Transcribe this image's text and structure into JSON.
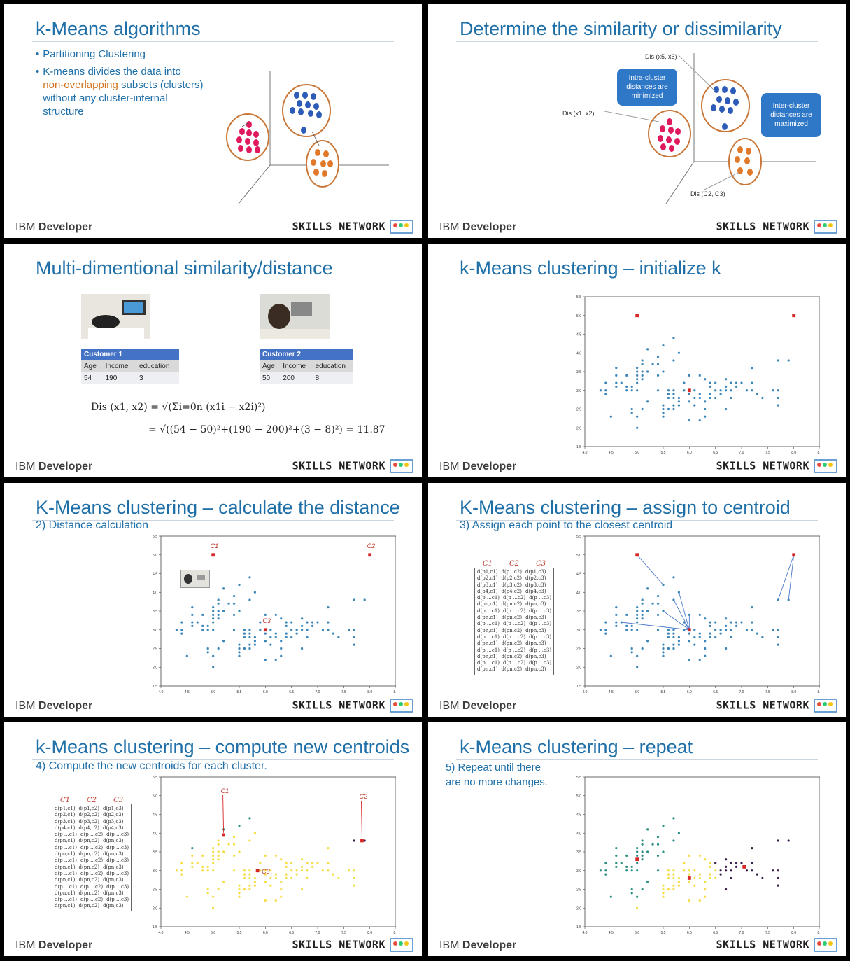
{
  "footer": {
    "left_light": "IBM ",
    "left_bold": "Developer",
    "right": "SKILLS NETWORK"
  },
  "slides": [
    {
      "title": "k-Means algorithms",
      "bullets": [
        {
          "text": "Partitioning Clustering"
        },
        {
          "pre": "K-means divides the data into ",
          "highlight": "non-overlapping",
          "post": " subsets (clusters) without any cluster-internal structure"
        }
      ]
    },
    {
      "title": "Determine the similarity or dissimilarity",
      "labels": {
        "dis56": "Dis (x5, x6)",
        "dis12": "Dis (x1, x2)",
        "disc": "Dis (C2, C3)"
      },
      "callout_intra": "Intra-cluster distances are minimized",
      "callout_inter": "Inter-cluster distances are maximized"
    },
    {
      "title": "Multi-dimentional similarity/distance",
      "customer1": {
        "name": "Customer 1",
        "headers": [
          "Age",
          "Income",
          "education"
        ],
        "values": [
          "54",
          "190",
          "3"
        ]
      },
      "customer2": {
        "name": "Customer 2",
        "headers": [
          "Age",
          "Income",
          "education"
        ],
        "values": [
          "50",
          "200",
          "8"
        ]
      },
      "formula1": "Dis (x1, x2) = √(Σi=0n (x1i − x2i)²)",
      "formula2": "= √((54 − 50)²+(190 − 200)²+(3 − 8)²) = 11.87"
    },
    {
      "title": "k-Means clustering – initialize k"
    },
    {
      "title": "K-Means clustering – calculate the distance",
      "subtitle": "2) Distance calculation",
      "centroid_labels": [
        "C1",
        "C2",
        "C3"
      ]
    },
    {
      "title": "K-Means clustering – assign to centroid",
      "subtitle": "3) Assign each point to the closest centroid"
    },
    {
      "title": "k-Means clustering – compute new centroids",
      "subtitle": "4) Compute the new centroids for each cluster."
    },
    {
      "title": "k-Means clustering – repeat",
      "subtitle": "5) Repeat until there are no more changes."
    }
  ],
  "matrix": {
    "headers": [
      "C1",
      "C2",
      "C3"
    ],
    "rows": [
      [
        "d(p1,c1)",
        "d(p1,c2)",
        "d(p1,c3)"
      ],
      [
        "d(p2,c1)",
        "d(p2,c2)",
        "d(p2,c3)"
      ],
      [
        "d(p3,c1)",
        "d(p3,c2)",
        "d(p3,c3)"
      ],
      [
        "d(p4,c1)",
        "d(p4,c2)",
        "d(p4,c3)"
      ],
      [
        "d(p …c1)",
        "d(p …c2)",
        "d(p …c3)"
      ],
      [
        "d(pn,c1)",
        "d(pn,c2)",
        "d(pn,c3)"
      ],
      [
        "d(p …c1)",
        "d(p …c2)",
        "d(p …c3)"
      ],
      [
        "d(pn,c1)",
        "d(pn,c2)",
        "d(pn,c3)"
      ],
      [
        "d(p …c1)",
        "d(p …c2)",
        "d(p …c3)"
      ],
      [
        "d(pn,c1)",
        "d(pn,c2)",
        "d(pn,c3)"
      ],
      [
        "d(p …c1)",
        "d(p …c2)",
        "d(p …c3)"
      ],
      [
        "d(pn,c1)",
        "d(pn,c2)",
        "d(pn,c3)"
      ],
      [
        "d(p …c1)",
        "d(p …c2)",
        "d(p …c3)"
      ],
      [
        "d(pn,c1)",
        "d(pn,c2)",
        "d(pn,c3)"
      ],
      [
        "d(p …c1)",
        "d(p …c2)",
        "d(p …c3)"
      ],
      [
        "d(pn,c1)",
        "d(pn,c2)",
        "d(pn,c3)"
      ]
    ]
  },
  "chart_data": {
    "type": "scatter",
    "xlim": [
      4.0,
      8.5
    ],
    "ylim": [
      1.5,
      5.5
    ],
    "xticks": [
      "4.0",
      "4.5",
      "5.0",
      "5.5",
      "6.0",
      "6.5",
      "7.0",
      "7.5",
      "8.0",
      "8.5"
    ],
    "yticks": [
      "1.5",
      "2.0",
      "2.5",
      "3.0",
      "3.5",
      "4.0",
      "4.5",
      "5.0",
      "5.5"
    ],
    "grid": false,
    "points": [
      [
        4.3,
        3.0
      ],
      [
        4.4,
        2.9
      ],
      [
        4.4,
        3.0
      ],
      [
        4.4,
        3.2
      ],
      [
        4.5,
        2.3
      ],
      [
        4.6,
        3.1
      ],
      [
        4.6,
        3.4
      ],
      [
        4.6,
        3.6
      ],
      [
        4.6,
        3.2
      ],
      [
        4.7,
        3.2
      ],
      [
        4.8,
        3.4
      ],
      [
        4.8,
        3.0
      ],
      [
        4.8,
        3.1
      ],
      [
        4.9,
        3.0
      ],
      [
        4.9,
        3.1
      ],
      [
        4.9,
        2.4
      ],
      [
        4.9,
        2.5
      ],
      [
        5.0,
        3.6
      ],
      [
        5.0,
        3.4
      ],
      [
        5.0,
        3.0
      ],
      [
        5.0,
        3.3
      ],
      [
        5.0,
        3.5
      ],
      [
        5.0,
        3.2
      ],
      [
        5.0,
        2.0
      ],
      [
        5.0,
        2.3
      ],
      [
        5.1,
        3.5
      ],
      [
        5.1,
        3.8
      ],
      [
        5.1,
        3.7
      ],
      [
        5.1,
        3.3
      ],
      [
        5.1,
        3.4
      ],
      [
        5.1,
        2.5
      ],
      [
        5.2,
        3.5
      ],
      [
        5.2,
        4.1
      ],
      [
        5.2,
        2.7
      ],
      [
        5.3,
        3.7
      ],
      [
        5.4,
        3.9
      ],
      [
        5.4,
        3.4
      ],
      [
        5.4,
        3.7
      ],
      [
        5.4,
        3.0
      ],
      [
        5.5,
        4.2
      ],
      [
        5.5,
        3.5
      ],
      [
        5.5,
        2.3
      ],
      [
        5.5,
        2.4
      ],
      [
        5.5,
        2.5
      ],
      [
        5.5,
        2.6
      ],
      [
        5.6,
        2.9
      ],
      [
        5.6,
        3.0
      ],
      [
        5.6,
        2.5
      ],
      [
        5.6,
        2.8
      ],
      [
        5.7,
        4.4
      ],
      [
        5.7,
        3.8
      ],
      [
        5.7,
        2.8
      ],
      [
        5.7,
        2.6
      ],
      [
        5.7,
        3.0
      ],
      [
        5.7,
        2.9
      ],
      [
        5.7,
        2.5
      ],
      [
        5.8,
        4.0
      ],
      [
        5.8,
        2.7
      ],
      [
        5.8,
        2.8
      ],
      [
        5.8,
        2.6
      ],
      [
        5.9,
        3.0
      ],
      [
        5.9,
        3.2
      ],
      [
        6.0,
        2.2
      ],
      [
        6.0,
        2.9
      ],
      [
        6.0,
        2.7
      ],
      [
        6.0,
        3.0
      ],
      [
        6.0,
        3.4
      ],
      [
        6.1,
        2.8
      ],
      [
        6.1,
        3.0
      ],
      [
        6.1,
        2.6
      ],
      [
        6.2,
        2.2
      ],
      [
        6.2,
        2.9
      ],
      [
        6.2,
        3.4
      ],
      [
        6.2,
        2.8
      ],
      [
        6.3,
        3.3
      ],
      [
        6.3,
        2.5
      ],
      [
        6.3,
        2.3
      ],
      [
        6.3,
        2.7
      ],
      [
        6.4,
        3.2
      ],
      [
        6.4,
        2.8
      ],
      [
        6.4,
        2.9
      ],
      [
        6.4,
        3.1
      ],
      [
        6.5,
        2.8
      ],
      [
        6.5,
        3.0
      ],
      [
        6.5,
        3.2
      ],
      [
        6.6,
        2.9
      ],
      [
        6.6,
        3.0
      ],
      [
        6.7,
        3.1
      ],
      [
        6.7,
        2.5
      ],
      [
        6.7,
        3.3
      ],
      [
        6.7,
        3.0
      ],
      [
        6.8,
        2.8
      ],
      [
        6.8,
        3.2
      ],
      [
        6.8,
        3.0
      ],
      [
        6.9,
        3.1
      ],
      [
        6.9,
        3.2
      ],
      [
        7.0,
        3.2
      ],
      [
        7.1,
        3.0
      ],
      [
        7.2,
        3.6
      ],
      [
        7.2,
        3.2
      ],
      [
        7.2,
        3.0
      ],
      [
        7.3,
        2.9
      ],
      [
        7.4,
        2.8
      ],
      [
        7.6,
        3.0
      ],
      [
        7.7,
        3.8
      ],
      [
        7.7,
        2.6
      ],
      [
        7.7,
        2.8
      ],
      [
        7.7,
        3.0
      ],
      [
        7.9,
        3.8
      ]
    ],
    "initial_centroids": [
      [
        5.0,
        5.0
      ],
      [
        8.0,
        5.0
      ],
      [
        6.0,
        3.0
      ]
    ],
    "new_centroids": [
      [
        5.2,
        3.95
      ],
      [
        7.85,
        3.8
      ],
      [
        5.85,
        3.0
      ]
    ],
    "repeat_centroids": [
      [
        5.0,
        3.3
      ],
      [
        7.05,
        3.1
      ],
      [
        6.0,
        2.8
      ]
    ]
  }
}
